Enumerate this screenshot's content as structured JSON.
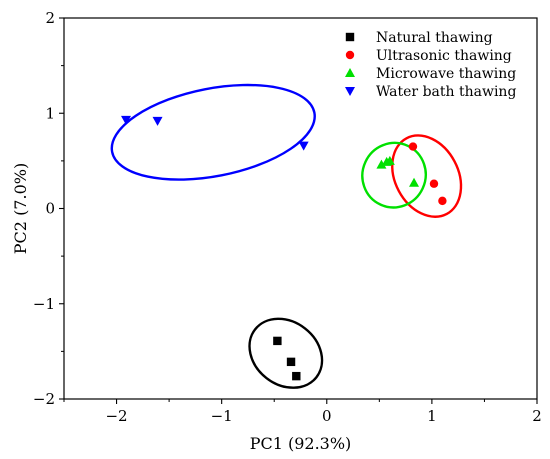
{
  "chart_data": {
    "type": "scatter",
    "xlabel": "PC1 (92.3%)",
    "ylabel": "PC2 (7.0%)",
    "xlim": [
      -2.5,
      2
    ],
    "ylim": [
      -2,
      2
    ],
    "xticks": [
      -2,
      -1,
      0,
      1,
      2
    ],
    "yticks": [
      -2,
      -1,
      0,
      1,
      2
    ],
    "x_tick_labels": [
      "−2",
      "−1",
      "0",
      "1",
      "2"
    ],
    "y_tick_labels": [
      "−2",
      "−1",
      "0",
      "1",
      "2"
    ],
    "grid": false,
    "legend_position": "top-right",
    "series": [
      {
        "name": "Natural thawing",
        "marker": "square",
        "color": "#000000",
        "points": [
          [
            -0.47,
            -1.39
          ],
          [
            -0.34,
            -1.61
          ],
          [
            -0.29,
            -1.76
          ]
        ],
        "ellipse": {
          "center": [
            -0.39,
            -1.52
          ],
          "rx_data": 0.37,
          "ry_data": 0.33,
          "rotation_deg": 38
        }
      },
      {
        "name": "Ultrasonic thawing",
        "marker": "circle",
        "color": "#ff0000",
        "points": [
          [
            0.82,
            0.65
          ],
          [
            1.02,
            0.26
          ],
          [
            1.1,
            0.08
          ]
        ],
        "ellipse": {
          "center": [
            0.95,
            0.34
          ],
          "rx_data": 0.3,
          "ry_data": 0.45,
          "rotation_deg": -28
        }
      },
      {
        "name": "Microwave thawing",
        "marker": "triangle-up",
        "color": "#00e000",
        "points": [
          [
            0.52,
            0.46
          ],
          [
            0.57,
            0.49
          ],
          [
            0.6,
            0.5
          ],
          [
            0.83,
            0.27
          ]
        ],
        "ellipse": {
          "center": [
            0.64,
            0.35
          ],
          "rx_data": 0.3,
          "ry_data": 0.34,
          "rotation_deg": 25
        }
      },
      {
        "name": "Water bath thawing",
        "marker": "triangle-down",
        "color": "#0000ff",
        "points": [
          [
            -1.91,
            0.93
          ],
          [
            -1.61,
            0.92
          ],
          [
            -0.22,
            0.66
          ]
        ],
        "ellipse": {
          "center": [
            -1.08,
            0.8
          ],
          "rx_data": 0.98,
          "ry_data": 0.46,
          "rotation_deg": -11
        }
      }
    ]
  }
}
